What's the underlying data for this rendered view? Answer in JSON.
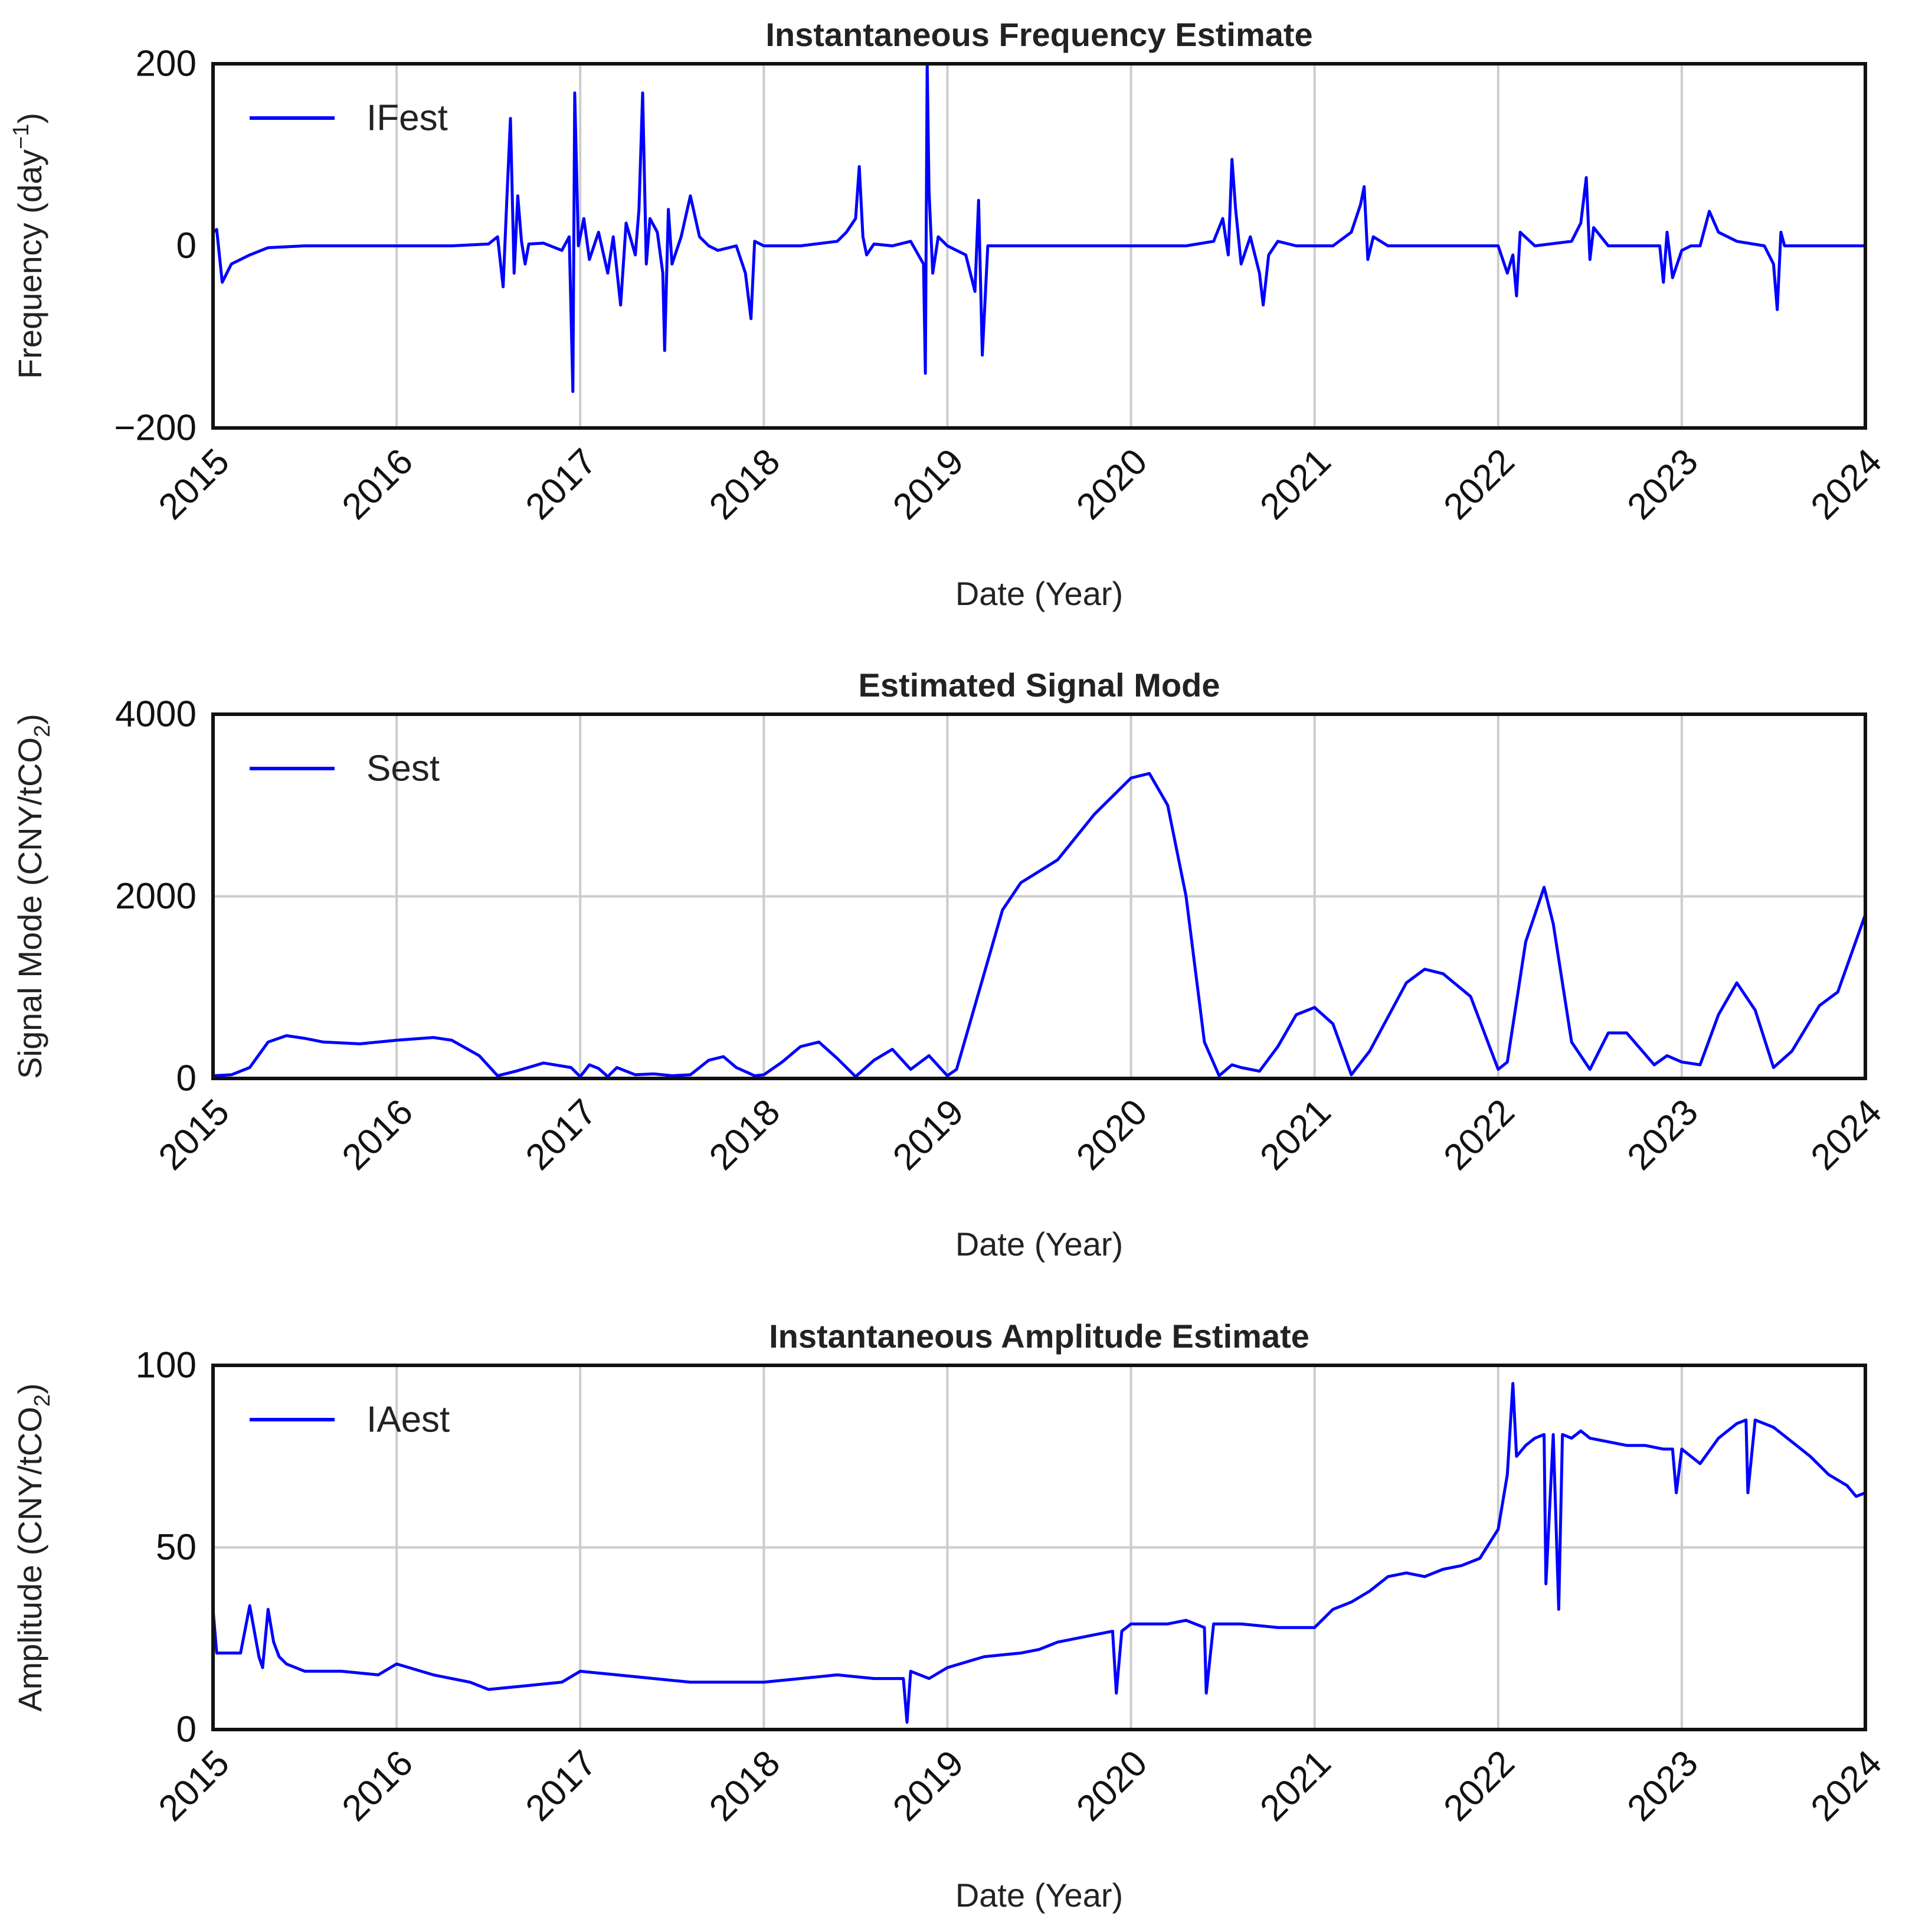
{
  "chart_data": [
    {
      "type": "line",
      "title": "Instantaneous Frequency Estimate",
      "xlabel": "Date (Year)",
      "ylabel": "Frequency (day",
      "ylabel_sup": "−1",
      "ylabel_tail": ")",
      "xlim": [
        2015,
        2024
      ],
      "ylim": [
        -200,
        200
      ],
      "xticks": [
        "2015",
        "2016",
        "2017",
        "2018",
        "2019",
        "2020",
        "2021",
        "2022",
        "2023",
        "2024"
      ],
      "yticks": [
        200,
        0,
        -200
      ],
      "ytick_labels": [
        "200",
        "0",
        "−200"
      ],
      "grid": "vertical",
      "legend_position": "upper-left",
      "series": [
        {
          "name": "IFest",
          "color": "#0000ff",
          "x": [
            2015.0,
            2015.02,
            2015.05,
            2015.1,
            2015.2,
            2015.3,
            2015.5,
            2015.7,
            2016.0,
            2016.3,
            2016.5,
            2016.55,
            2016.58,
            2016.6,
            2016.62,
            2016.64,
            2016.66,
            2016.68,
            2016.7,
            2016.72,
            2016.8,
            2016.9,
            2016.94,
            2016.96,
            2016.97,
            2016.99,
            2017.02,
            2017.05,
            2017.1,
            2017.15,
            2017.18,
            2017.22,
            2017.25,
            2017.3,
            2017.32,
            2017.34,
            2017.36,
            2017.38,
            2017.42,
            2017.45,
            2017.46,
            2017.48,
            2017.5,
            2017.55,
            2017.6,
            2017.65,
            2017.7,
            2017.75,
            2017.85,
            2017.9,
            2017.93,
            2017.95,
            2018.0,
            2018.2,
            2018.4,
            2018.45,
            2018.5,
            2018.52,
            2018.54,
            2018.56,
            2018.6,
            2018.7,
            2018.8,
            2018.87,
            2018.88,
            2018.89,
            2018.9,
            2018.92,
            2018.95,
            2019.0,
            2019.1,
            2019.15,
            2019.17,
            2019.19,
            2019.22,
            2019.3,
            2019.5,
            2019.8,
            2020.0,
            2020.3,
            2020.45,
            2020.5,
            2020.53,
            2020.55,
            2020.57,
            2020.6,
            2020.65,
            2020.7,
            2020.72,
            2020.75,
            2020.8,
            2020.9,
            2021.0,
            2021.1,
            2021.2,
            2021.25,
            2021.27,
            2021.29,
            2021.32,
            2021.4,
            2021.6,
            2021.8,
            2022.0,
            2022.05,
            2022.08,
            2022.1,
            2022.12,
            2022.2,
            2022.4,
            2022.45,
            2022.48,
            2022.5,
            2022.52,
            2022.6,
            2022.8,
            2022.88,
            2022.9,
            2022.92,
            2022.95,
            2023.0,
            2023.05,
            2023.1,
            2023.15,
            2023.2,
            2023.3,
            2023.45,
            2023.5,
            2023.52,
            2023.54,
            2023.56,
            2023.6,
            2023.8,
            2024.0
          ],
          "y": [
            15,
            18,
            -40,
            -20,
            -10,
            -2,
            0,
            0,
            0,
            0,
            2,
            10,
            -45,
            50,
            140,
            -30,
            55,
            5,
            -20,
            2,
            3,
            -5,
            10,
            -160,
            168,
            0,
            30,
            -15,
            15,
            -30,
            10,
            -65,
            25,
            -10,
            40,
            168,
            -20,
            30,
            15,
            -30,
            -115,
            40,
            -20,
            10,
            55,
            10,
            0,
            -5,
            0,
            -30,
            -80,
            5,
            0,
            0,
            5,
            15,
            30,
            87,
            10,
            -10,
            2,
            0,
            5,
            -20,
            -140,
            200,
            60,
            -30,
            10,
            0,
            -10,
            -50,
            50,
            -120,
            0,
            0,
            0,
            0,
            0,
            0,
            5,
            30,
            -10,
            95,
            40,
            -20,
            10,
            -30,
            -65,
            -10,
            5,
            0,
            0,
            0,
            15,
            45,
            65,
            -15,
            10,
            0,
            0,
            0,
            0,
            -30,
            -10,
            -55,
            15,
            0,
            5,
            25,
            75,
            -15,
            20,
            0,
            0,
            0,
            -40,
            15,
            -35,
            -5,
            0,
            0,
            38,
            15,
            5,
            0,
            -20,
            -70,
            15,
            0,
            0,
            0,
            0
          ]
        }
      ]
    },
    {
      "type": "line",
      "title": "Estimated Signal Mode",
      "xlabel": "Date (Year)",
      "ylabel": "Signal Mode (CNY/tCO",
      "ylabel_sub": "2",
      "ylabel_tail": ")",
      "xlim": [
        2015,
        2024
      ],
      "ylim": [
        0,
        4000
      ],
      "xticks": [
        "2015",
        "2016",
        "2017",
        "2018",
        "2019",
        "2020",
        "2021",
        "2022",
        "2023",
        "2024"
      ],
      "yticks": [
        4000,
        2000,
        0
      ],
      "ytick_labels": [
        "4000",
        "2000",
        "0"
      ],
      "grid": "both",
      "legend_position": "upper-left",
      "series": [
        {
          "name": "Sest",
          "color": "#0000ff",
          "x": [
            2015.0,
            2015.1,
            2015.2,
            2015.3,
            2015.4,
            2015.5,
            2015.6,
            2015.8,
            2016.0,
            2016.2,
            2016.3,
            2016.45,
            2016.55,
            2016.65,
            2016.8,
            2016.95,
            2017.0,
            2017.05,
            2017.1,
            2017.15,
            2017.2,
            2017.25,
            2017.3,
            2017.4,
            2017.5,
            2017.6,
            2017.7,
            2017.78,
            2017.85,
            2017.95,
            2018.0,
            2018.1,
            2018.2,
            2018.3,
            2018.4,
            2018.5,
            2018.6,
            2018.7,
            2018.8,
            2018.9,
            2019.0,
            2019.05,
            2019.15,
            2019.3,
            2019.4,
            2019.6,
            2019.8,
            2020.0,
            2020.1,
            2020.2,
            2020.3,
            2020.4,
            2020.48,
            2020.55,
            2020.6,
            2020.7,
            2020.8,
            2020.9,
            2021.0,
            2021.1,
            2021.2,
            2021.3,
            2021.5,
            2021.6,
            2021.7,
            2021.85,
            2022.0,
            2022.05,
            2022.15,
            2022.25,
            2022.3,
            2022.4,
            2022.5,
            2022.6,
            2022.7,
            2022.85,
            2022.92,
            2023.0,
            2023.1,
            2023.2,
            2023.3,
            2023.4,
            2023.5,
            2023.6,
            2023.75,
            2023.85,
            2024.0
          ],
          "y": [
            30,
            40,
            120,
            400,
            470,
            440,
            400,
            380,
            420,
            450,
            420,
            250,
            30,
            80,
            170,
            120,
            20,
            150,
            110,
            20,
            120,
            80,
            40,
            50,
            30,
            40,
            200,
            240,
            120,
            30,
            40,
            180,
            350,
            400,
            220,
            20,
            200,
            320,
            100,
            250,
            30,
            100,
            800,
            1850,
            2150,
            2400,
            2900,
            3300,
            3350,
            3000,
            2000,
            400,
            30,
            150,
            120,
            80,
            350,
            700,
            780,
            600,
            40,
            300,
            1050,
            1200,
            1150,
            900,
            100,
            180,
            1500,
            2100,
            1700,
            400,
            100,
            500,
            500,
            150,
            250,
            180,
            150,
            700,
            1050,
            750,
            120,
            300,
            800,
            950,
            1800
          ]
        }
      ]
    },
    {
      "type": "line",
      "title": "Instantaneous Amplitude Estimate",
      "xlabel": "Date (Year)",
      "ylabel": "Amplitude (CNY/tCO",
      "ylabel_sub": "2",
      "ylabel_tail": ")",
      "xlim": [
        2015,
        2024
      ],
      "ylim": [
        0,
        100
      ],
      "xticks": [
        "2015",
        "2016",
        "2017",
        "2018",
        "2019",
        "2020",
        "2021",
        "2022",
        "2023",
        "2024"
      ],
      "yticks": [
        100,
        50,
        0
      ],
      "ytick_labels": [
        "100",
        "50",
        "0"
      ],
      "grid": "both",
      "legend_position": "upper-left",
      "series": [
        {
          "name": "IAest",
          "color": "#0000ff",
          "x": [
            2015.0,
            2015.02,
            2015.05,
            2015.15,
            2015.2,
            2015.25,
            2015.27,
            2015.3,
            2015.33,
            2015.36,
            2015.4,
            2015.5,
            2015.7,
            2015.9,
            2016.0,
            2016.2,
            2016.4,
            2016.5,
            2016.7,
            2016.9,
            2017.0,
            2017.2,
            2017.4,
            2017.6,
            2017.8,
            2018.0,
            2018.2,
            2018.4,
            2018.6,
            2018.76,
            2018.78,
            2018.8,
            2018.9,
            2019.0,
            2019.2,
            2019.4,
            2019.5,
            2019.6,
            2019.8,
            2019.9,
            2019.92,
            2019.95,
            2020.0,
            2020.2,
            2020.3,
            2020.4,
            2020.41,
            2020.45,
            2020.6,
            2020.8,
            2021.0,
            2021.1,
            2021.2,
            2021.3,
            2021.4,
            2021.5,
            2021.6,
            2021.7,
            2021.8,
            2021.9,
            2022.0,
            2022.05,
            2022.08,
            2022.1,
            2022.15,
            2022.2,
            2022.25,
            2022.26,
            2022.3,
            2022.33,
            2022.35,
            2022.4,
            2022.45,
            2022.5,
            2022.6,
            2022.7,
            2022.8,
            2022.9,
            2022.95,
            2022.97,
            2023.0,
            2023.1,
            2023.2,
            2023.3,
            2023.35,
            2023.36,
            2023.4,
            2023.5,
            2023.6,
            2023.7,
            2023.8,
            2023.9,
            2023.95,
            2024.0
          ],
          "y": [
            33,
            21,
            21,
            21,
            34,
            20,
            17,
            33,
            24,
            20,
            18,
            16,
            16,
            15,
            18,
            15,
            13,
            11,
            12,
            13,
            16,
            15,
            14,
            13,
            13,
            13,
            14,
            15,
            14,
            14,
            2,
            16,
            14,
            17,
            20,
            21,
            22,
            24,
            26,
            27,
            10,
            27,
            29,
            29,
            30,
            28,
            10,
            29,
            29,
            28,
            28,
            33,
            35,
            38,
            42,
            43,
            42,
            44,
            45,
            47,
            55,
            70,
            95,
            75,
            78,
            80,
            81,
            40,
            81,
            33,
            81,
            80,
            82,
            80,
            79,
            78,
            78,
            77,
            77,
            65,
            77,
            73,
            80,
            84,
            85,
            65,
            85,
            83,
            79,
            75,
            70,
            67,
            64,
            65
          ]
        }
      ]
    }
  ]
}
